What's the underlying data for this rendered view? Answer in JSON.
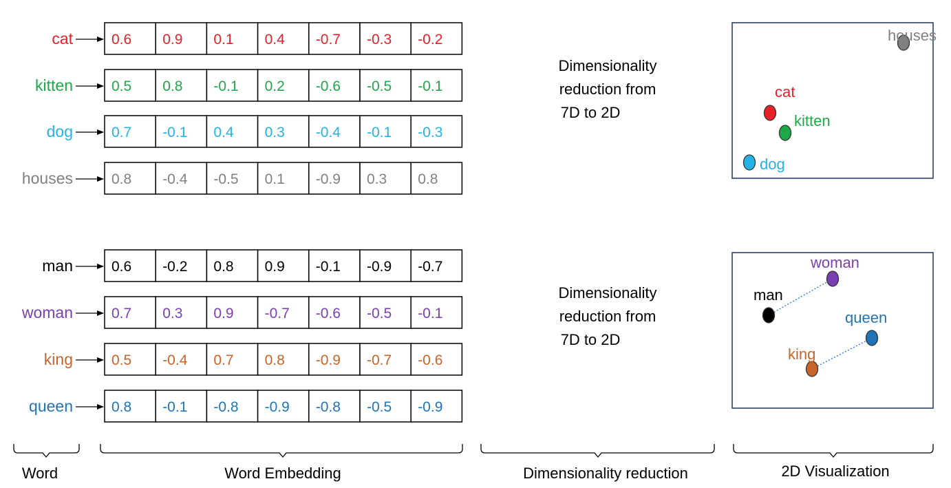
{
  "colors": {
    "cat": "#e8202a",
    "kitten": "#1fa84a",
    "dog": "#23b3e8",
    "houses": "#808080",
    "man": "#000000",
    "woman": "#7a3fb0",
    "king": "#c8642a",
    "queen": "#1f74b8",
    "frame": "#2e3f66",
    "pair_line": "#3a78c8"
  },
  "groups": [
    {
      "id": "animals",
      "reduction_text": [
        "Dimensionality",
        "reduction from",
        "7D to 2D"
      ],
      "words": [
        {
          "word": "cat",
          "color_key": "cat",
          "values": [
            "0.6",
            "0.9",
            "0.1",
            "0.4",
            "-0.7",
            "-0.3",
            "-0.2"
          ]
        },
        {
          "word": "kitten",
          "color_key": "kitten",
          "values": [
            "0.5",
            "0.8",
            "-0.1",
            "0.2",
            "-0.6",
            "-0.5",
            "-0.1"
          ]
        },
        {
          "word": "dog",
          "color_key": "dog",
          "values": [
            "0.7",
            "-0.1",
            "0.4",
            "0.3",
            "-0.4",
            "-0.1",
            "-0.3"
          ]
        },
        {
          "word": "houses",
          "color_key": "houses",
          "values": [
            "0.8",
            "-0.4",
            "-0.5",
            "0.1",
            "-0.9",
            "0.3",
            "0.8"
          ]
        }
      ],
      "visualization": {
        "points": [
          {
            "label": "houses",
            "color_key": "houses",
            "label_pos": "left"
          },
          {
            "label": "cat",
            "color_key": "cat",
            "label_pos": "above"
          },
          {
            "label": "kitten",
            "color_key": "kitten",
            "label_pos": "right"
          },
          {
            "label": "dog",
            "color_key": "dog",
            "label_pos": "right"
          }
        ],
        "pairs": []
      }
    },
    {
      "id": "royalty",
      "reduction_text": [
        "Dimensionality",
        "reduction from",
        "7D to 2D"
      ],
      "words": [
        {
          "word": "man",
          "color_key": "man",
          "values": [
            "0.6",
            "-0.2",
            "0.8",
            "0.9",
            "-0.1",
            "-0.9",
            "-0.7"
          ]
        },
        {
          "word": "woman",
          "color_key": "woman",
          "values": [
            "0.7",
            "0.3",
            "0.9",
            "-0.7",
            "-0.6",
            "-0.5",
            "-0.1"
          ]
        },
        {
          "word": "king",
          "color_key": "king",
          "values": [
            "0.5",
            "-0.4",
            "0.7",
            "0.8",
            "-0.9",
            "-0.7",
            "-0.6"
          ]
        },
        {
          "word": "queen",
          "color_key": "queen",
          "values": [
            "0.8",
            "-0.1",
            "-0.8",
            "-0.9",
            "-0.8",
            "-0.5",
            "-0.9"
          ]
        }
      ],
      "visualization": {
        "points": [
          {
            "label": "woman",
            "color_key": "woman",
            "label_pos": "above"
          },
          {
            "label": "man",
            "color_key": "man",
            "label_pos": "above"
          },
          {
            "label": "queen",
            "color_key": "queen",
            "label_pos": "above"
          },
          {
            "label": "king",
            "color_key": "king",
            "label_pos": "above"
          }
        ],
        "pairs": [
          [
            "man",
            "woman"
          ],
          [
            "king",
            "queen"
          ]
        ]
      }
    }
  ],
  "captions": {
    "word": "Word",
    "embedding": "Word Embedding",
    "reduction": "Dimensionality reduction",
    "visualization": "2D Visualization"
  }
}
